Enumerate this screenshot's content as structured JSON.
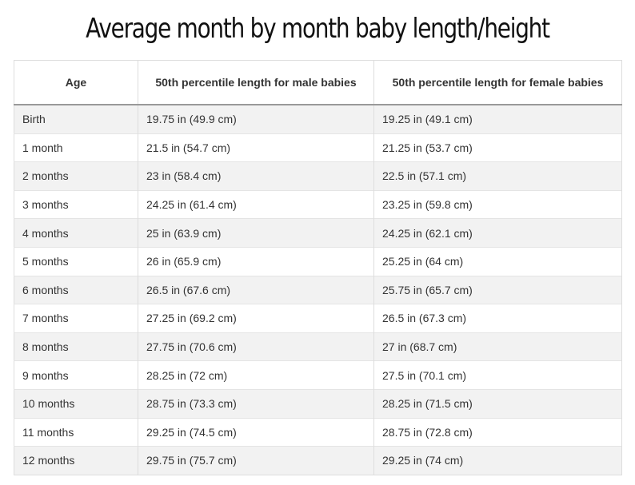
{
  "header": {
    "title": "Average month by month baby length/height"
  },
  "table": {
    "columns": [
      "Age",
      "50th percentile length for male babies",
      "50th percentile length for female babies"
    ],
    "rows": [
      [
        "Birth",
        "19.75 in (49.9 cm)",
        "19.25 in (49.1 cm)"
      ],
      [
        "1 month",
        "21.5 in (54.7 cm)",
        "21.25 in (53.7 cm)"
      ],
      [
        "2 months",
        "23 in (58.4 cm)",
        "22.5 in (57.1 cm)"
      ],
      [
        "3 months",
        "24.25 in (61.4 cm)",
        "23.25 in (59.8 cm)"
      ],
      [
        "4 months",
        "25 in (63.9 cm)",
        "24.25 in (62.1 cm)"
      ],
      [
        "5 months",
        "26 in (65.9 cm)",
        "25.25 in (64 cm)"
      ],
      [
        "6 months",
        "26.5 in (67.6 cm)",
        "25.75 in (65.7 cm)"
      ],
      [
        "7 months",
        "27.25 in (69.2 cm)",
        "26.5 in (67.3 cm)"
      ],
      [
        "8 months",
        "27.75 in (70.6 cm)",
        "27 in (68.7 cm)"
      ],
      [
        "9 months",
        "28.25 in (72 cm)",
        "27.5 in (70.1 cm)"
      ],
      [
        "10 months",
        "28.75 in (73.3 cm)",
        "28.25 in (71.5 cm)"
      ],
      [
        "11 months",
        "29.25 in (74.5 cm)",
        "28.75 in (72.8 cm)"
      ],
      [
        "12 months",
        "29.75 in (75.7 cm)",
        "29.25 in (74 cm)"
      ]
    ]
  }
}
